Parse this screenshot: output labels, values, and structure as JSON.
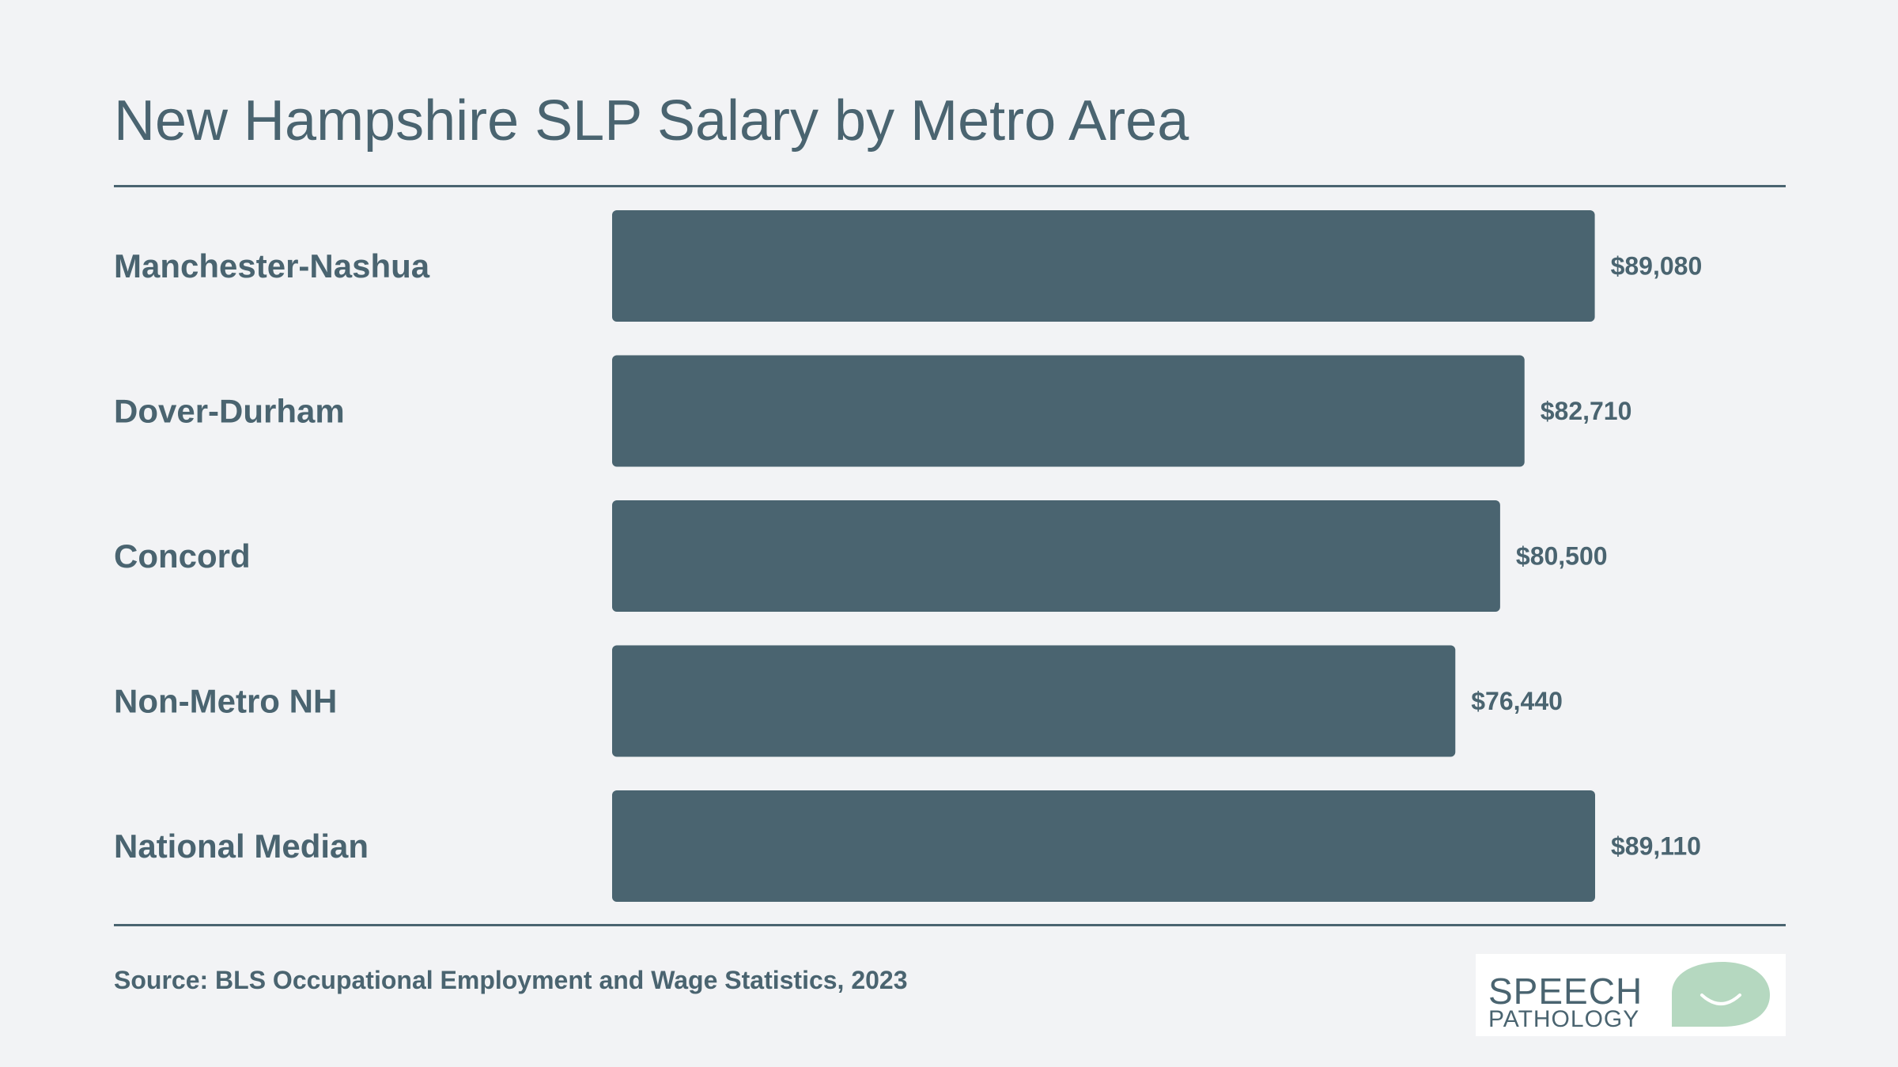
{
  "chart_data": {
    "type": "bar",
    "orientation": "horizontal",
    "title": "New Hampshire SLP Salary by Metro Area",
    "categories": [
      "Manchester-Nashua",
      "Dover-Durham",
      "Concord",
      "Non-Metro NH",
      "National Median"
    ],
    "values": [
      89080,
      82710,
      80500,
      76440,
      89110
    ],
    "value_labels": [
      "$89,080",
      "$82,710",
      "$80,500",
      "$76,440",
      "$89,110"
    ],
    "xlim": [
      0,
      89110
    ],
    "xlabel": "",
    "ylabel": "",
    "grid": false,
    "legend": "none",
    "bar_color": "#4a6470"
  },
  "source": "Source: BLS Occupational Employment and Wage Statistics, 2023",
  "logo": {
    "line1": "SPEECH",
    "line2": "PATHOLOGY",
    "accent": "#b5d8c0"
  },
  "colors": {
    "background": "#f2f3f5",
    "text": "#4a6470"
  }
}
